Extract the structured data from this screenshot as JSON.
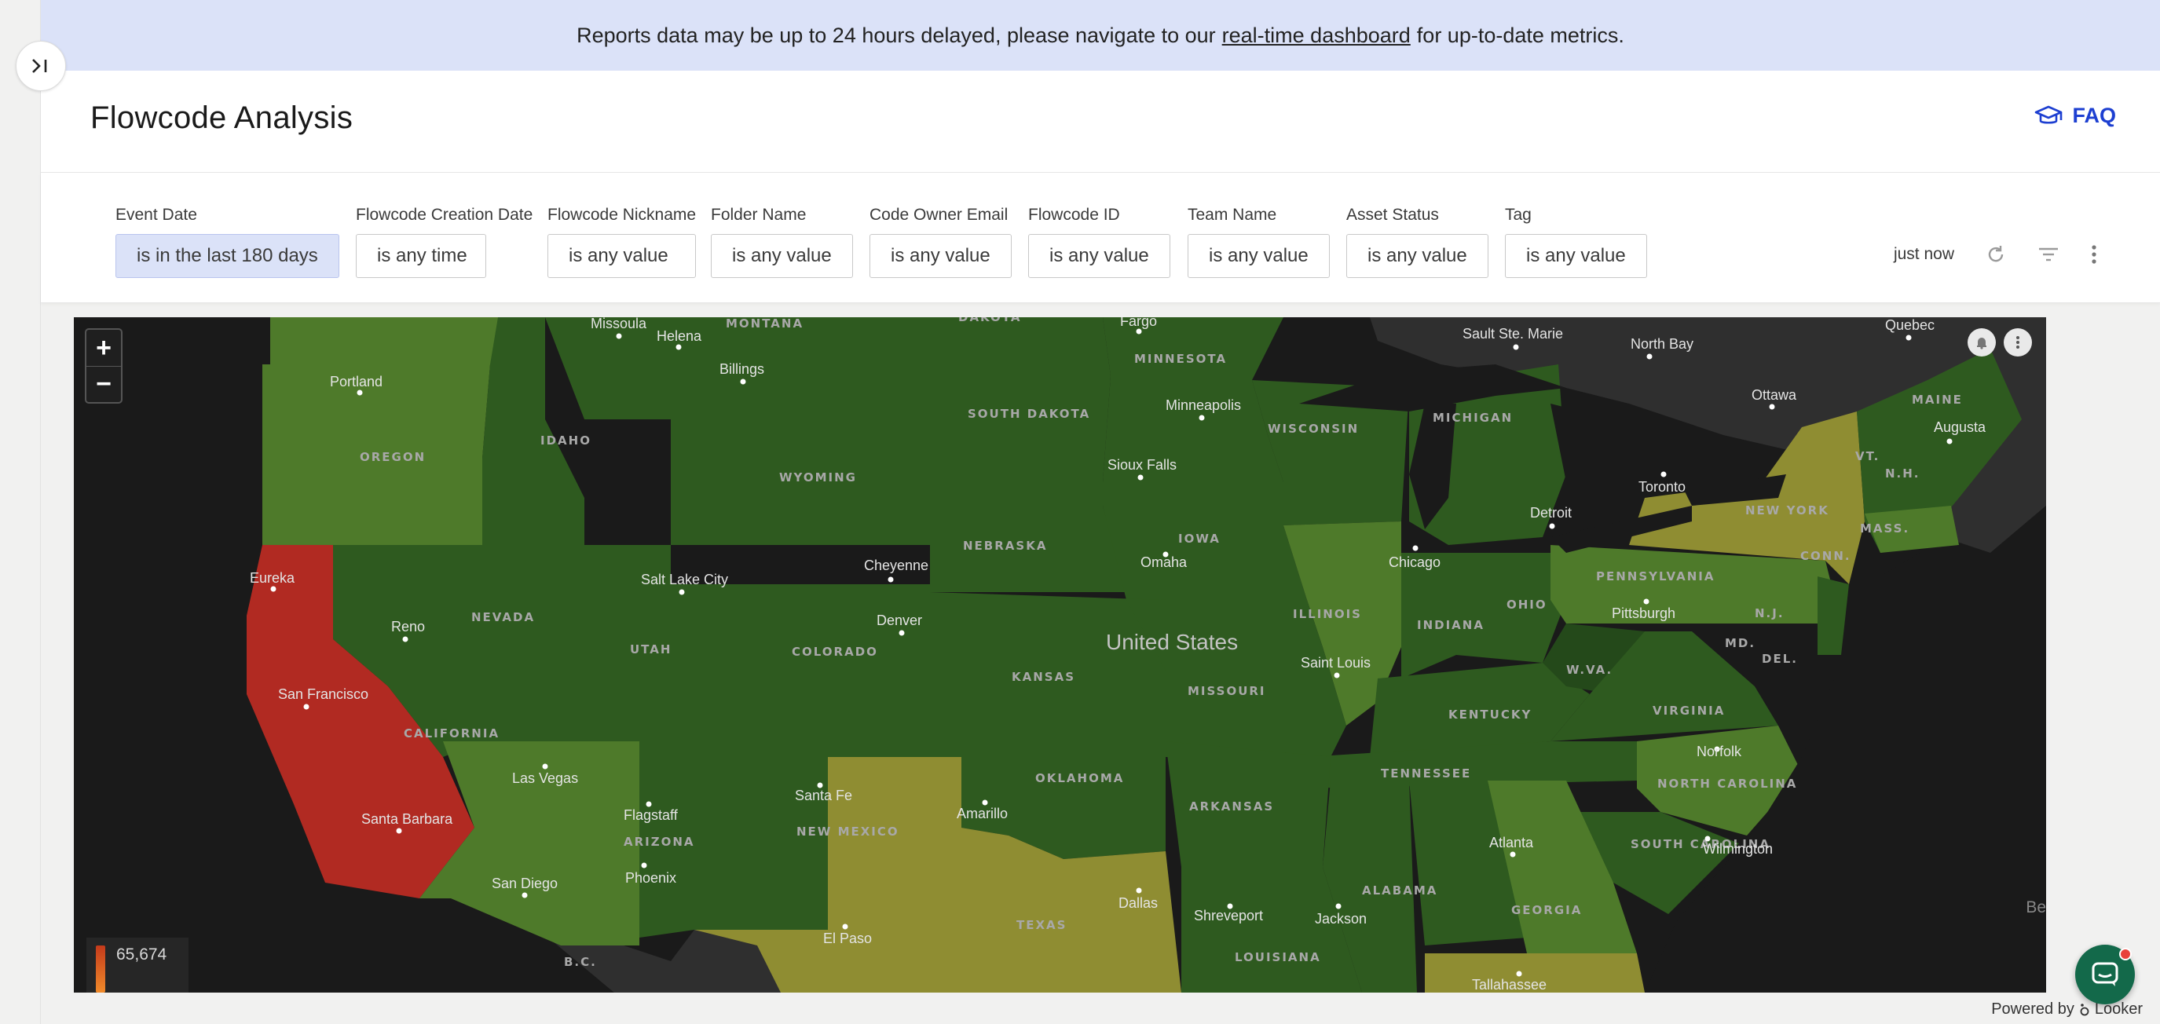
{
  "banner": {
    "text_before": "Reports data may be up to 24 hours delayed, please navigate to our",
    "link": "real-time dashboard",
    "text_after": "for up-to-date metrics."
  },
  "header": {
    "title": "Flowcode Analysis",
    "faq_label": "FAQ"
  },
  "filters": [
    {
      "label": "Event Date",
      "value": "is in the last 180 days"
    },
    {
      "label": "Flowcode Creation Date",
      "value": "is any time"
    },
    {
      "label": "Flowcode Nickname",
      "value": "is any value"
    },
    {
      "label": "Folder Name",
      "value": "is any value"
    },
    {
      "label": "Code Owner Email",
      "value": "is any value"
    },
    {
      "label": "Flowcode ID",
      "value": "is any value"
    },
    {
      "label": "Team Name",
      "value": "is any value"
    },
    {
      "label": "Asset Status",
      "value": "is any value"
    },
    {
      "label": "Tag",
      "value": "is any value"
    }
  ],
  "dashboard_tools": {
    "last_refresh": "just now"
  },
  "map": {
    "country_label": "United States",
    "legend_max": "65,674",
    "corner_text": "Be",
    "colors": {
      "high": "#b12a22",
      "mid": "#8f8d32",
      "low_light": "#4e7a2a",
      "low": "#2e5a1f",
      "low_dark": "#24491a",
      "water": "#1a1a1a",
      "land_other": "#2f2f2f"
    },
    "state_labels": [
      "MONTANA",
      "DAKOTA",
      "MINNESOTA",
      "MICHIGAN",
      "MAINE",
      "OREGON",
      "IDAHO",
      "WYOMING",
      "SOUTH DAKOTA",
      "WISCONSIN",
      "VT.",
      "N.H.",
      "NEW YORK",
      "MASS.",
      "CONN.",
      "NEBRASKA",
      "IOWA",
      "PENNSYLVANIA",
      "NEVADA",
      "UTAH",
      "COLORADO",
      "ILLINOIS",
      "INDIANA",
      "OHIO",
      "N.J.",
      "KANSAS",
      "MISSOURI",
      "MD.",
      "DEL.",
      "CALIFORNIA",
      "KENTUCKY",
      "W.VA.",
      "VIRGINIA",
      "TENNESSEE",
      "OKLAHOMA",
      "ARKANSAS",
      "NORTH CAROLINA",
      "SOUTH CAROLINA",
      "ARIZONA",
      "NEW MEXICO",
      "TEXAS",
      "ALABAMA",
      "GEORGIA",
      "LOUISIANA",
      "B.C."
    ],
    "cities": [
      "Missoula",
      "Helena",
      "Fargo",
      "Sault Ste. Marie",
      "North Bay",
      "Quebec",
      "Portland",
      "Billings",
      "Ottawa",
      "Minneapolis",
      "Augusta",
      "Sioux Falls",
      "Toronto",
      "Detroit",
      "Omaha",
      "Chicago",
      "Eureka",
      "Salt Lake City",
      "Cheyenne",
      "Pittsburgh",
      "Denver",
      "Reno",
      "Saint Louis",
      "San Francisco",
      "Las Vegas",
      "Norfolk",
      "Santa Fe",
      "Flagstaff",
      "Amarillo",
      "Santa Barbara",
      "Wilmington",
      "Atlanta",
      "Phoenix",
      "San Diego",
      "Dallas",
      "Shreveport",
      "Jackson",
      "El Paso",
      "Tallahassee"
    ]
  },
  "footer": {
    "powered_by": "Powered by",
    "brand": "Looker"
  }
}
